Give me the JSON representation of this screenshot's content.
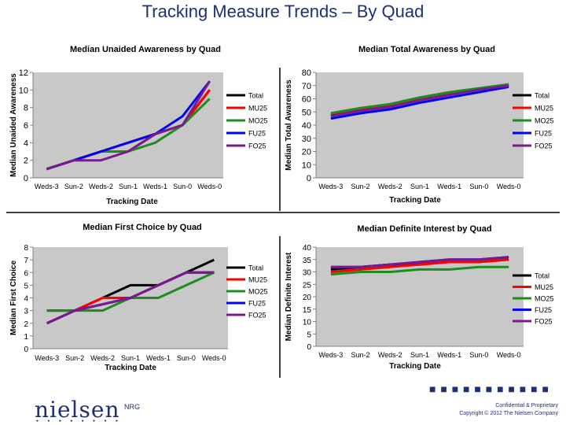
{
  "page": {
    "title": "Tracking Measure Trends – By Quad"
  },
  "footer": {
    "logo": "nielsen",
    "logo_dots": "● ● ● ● ● ● ● ●",
    "label": "NRG",
    "dots": "■ ■ ■ ■ ■ ■ ■ ■ ■ ■ ■",
    "confidential": "Confidential & Proprietary",
    "copyright": "Copyright © 2012 The Nielsen Company"
  },
  "colors": {
    "Total": "#000000",
    "MU25": "#ff0000",
    "MO25": "#1e8c1e",
    "FU25": "#0000ff",
    "FO25": "#7a1a8c",
    "plot_bg": "#c8c8c8",
    "title_color": "#1f2e7a"
  },
  "chart_data": [
    {
      "type": "line",
      "title": "Median Unaided Awareness by Quad",
      "xlabel": "Tracking Date",
      "ylabel": "Median Unaided Awareness",
      "categories": [
        "Weds-3",
        "Sun-2",
        "Weds-2",
        "Sun-1",
        "Weds-1",
        "Sun-0",
        "Weds-0"
      ],
      "ylim": [
        0,
        12
      ],
      "yticks": [
        "0",
        "2",
        "4",
        "6",
        "8",
        "10",
        "12"
      ],
      "legend": "right",
      "series": [
        {
          "name": "Total",
          "values": [
            1,
            2,
            3,
            3,
            5,
            6,
            10
          ]
        },
        {
          "name": "MU25",
          "values": [
            1,
            2,
            3,
            4,
            5,
            6,
            10
          ]
        },
        {
          "name": "MO25",
          "values": [
            1,
            2,
            3,
            3,
            4,
            6,
            9
          ]
        },
        {
          "name": "FU25",
          "values": [
            1,
            2,
            3,
            4,
            5,
            7,
            11
          ]
        },
        {
          "name": "FO25",
          "values": [
            1,
            2,
            2,
            3,
            5,
            6,
            11
          ]
        }
      ]
    },
    {
      "type": "line",
      "title": "Median Total Awareness by Quad",
      "xlabel": "Tracking Date",
      "ylabel": "Median Total Awareness",
      "categories": [
        "Weds-3",
        "Sun-2",
        "Weds-2",
        "Sun-1",
        "Weds-1",
        "Sun-0",
        "Weds-0"
      ],
      "ylim": [
        0,
        80
      ],
      "yticks": [
        "0",
        "10",
        "20",
        "30",
        "40",
        "50",
        "60",
        "70",
        "80"
      ],
      "legend": "right",
      "series": [
        {
          "name": "Total",
          "values": [
            47,
            51,
            54,
            59,
            63,
            67,
            70
          ]
        },
        {
          "name": "MU25",
          "values": [
            48,
            52,
            55,
            60,
            64,
            67,
            71
          ]
        },
        {
          "name": "MO25",
          "values": [
            49,
            53,
            56,
            61,
            65,
            68,
            71
          ]
        },
        {
          "name": "FU25",
          "values": [
            45,
            49,
            52,
            57,
            61,
            65,
            69
          ]
        },
        {
          "name": "FO25",
          "values": [
            47,
            51,
            54,
            59,
            63,
            67,
            70
          ]
        }
      ]
    },
    {
      "type": "line",
      "title": "Median First Choice by Quad",
      "xlabel": "Tracking Date",
      "ylabel": "Median First Choice",
      "categories": [
        "Weds-3",
        "Sun-2",
        "Weds-2",
        "Sun-1",
        "Weds-1",
        "Sun-0",
        "Weds-0"
      ],
      "ylim": [
        0,
        8
      ],
      "yticks": [
        "0",
        "1",
        "2",
        "3",
        "4",
        "5",
        "6",
        "7",
        "8"
      ],
      "legend": "right",
      "series": [
        {
          "name": "Total",
          "values": [
            3,
            3,
            4,
            5,
            5,
            6,
            7
          ]
        },
        {
          "name": "MU25",
          "values": [
            2,
            3,
            4,
            4,
            5,
            6,
            6
          ]
        },
        {
          "name": "MO25",
          "values": [
            3,
            3,
            3,
            4,
            4,
            5,
            6
          ]
        },
        {
          "name": "FU25",
          "values": [
            2,
            3,
            3.5,
            4,
            5,
            6,
            6
          ]
        },
        {
          "name": "FO25",
          "values": [
            2,
            3,
            3.5,
            4,
            5,
            6,
            6
          ]
        }
      ]
    },
    {
      "type": "line",
      "title": "Median Definite Interest by Quad",
      "xlabel": "Tracking Date",
      "ylabel": "Median Definite Interest",
      "categories": [
        "Weds-3",
        "Sun-2",
        "Weds-2",
        "Sun-1",
        "Weds-1",
        "Sun-0",
        "Weds-0"
      ],
      "ylim": [
        0,
        40
      ],
      "yticks": [
        "0",
        "5",
        "10",
        "15",
        "20",
        "25",
        "30",
        "35",
        "40"
      ],
      "legend": "right",
      "series": [
        {
          "name": "Total",
          "values": [
            31,
            32,
            33,
            33,
            34,
            34,
            35
          ]
        },
        {
          "name": "MU25",
          "values": [
            30,
            31,
            32,
            33,
            34,
            34,
            35
          ]
        },
        {
          "name": "MO25",
          "values": [
            29,
            30,
            30,
            31,
            31,
            32,
            32
          ]
        },
        {
          "name": "FU25",
          "values": [
            32,
            32,
            33,
            34,
            35,
            35,
            36
          ]
        },
        {
          "name": "FO25",
          "values": [
            32,
            32,
            33,
            34,
            35,
            35,
            36
          ]
        }
      ]
    }
  ]
}
